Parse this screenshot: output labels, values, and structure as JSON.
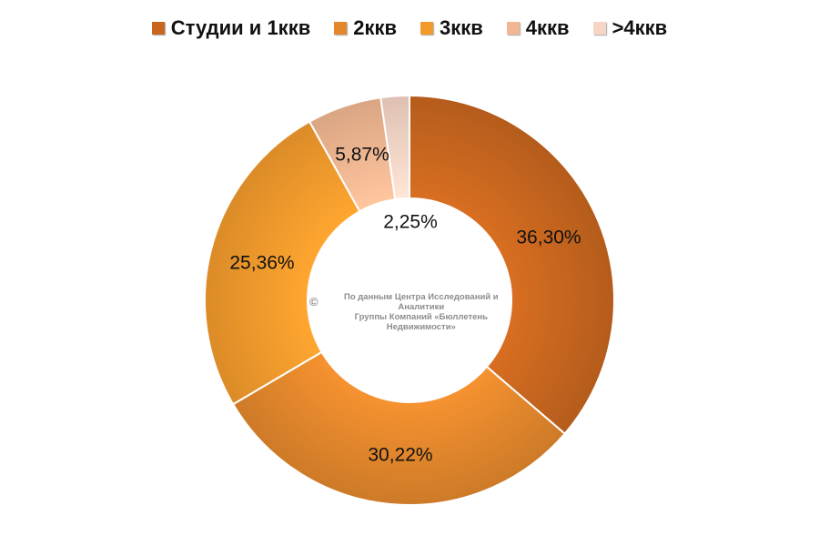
{
  "chart_data": {
    "type": "pie",
    "variant": "donut",
    "categories": [
      "Студии и 1ккв",
      "2ккв",
      "3ккв",
      "4ккв",
      ">4ккв"
    ],
    "values": [
      36.3,
      30.22,
      25.36,
      5.87,
      2.25
    ],
    "labels": [
      "36,30%",
      "30,22%",
      "25,36%",
      "5,87%",
      "2,25%"
    ],
    "colors": [
      "#C8661F",
      "#E4872C",
      "#F39A2C",
      "#F2B792",
      "#F7D5C6"
    ],
    "legend_position": "top"
  },
  "watermark": {
    "copyright": "©",
    "line1": "По данным Центра Исследований и Аналитики",
    "line2": "Группы Компаний «Бюллетень Недвижимости»"
  }
}
